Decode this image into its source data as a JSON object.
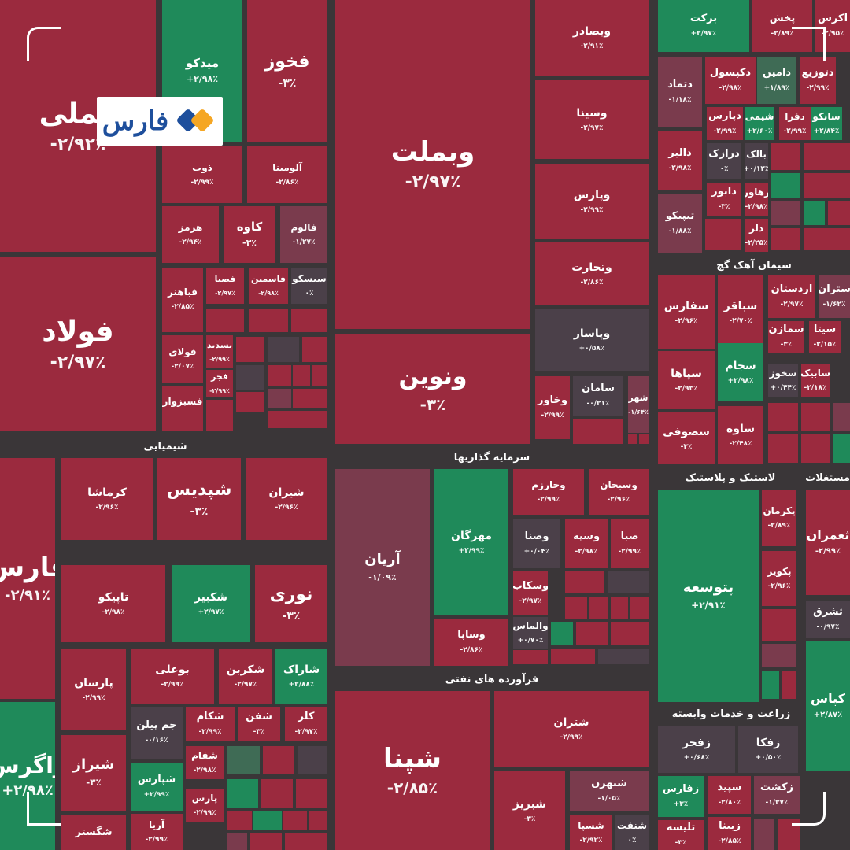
{
  "logo": {
    "text": "فارس",
    "colors": {
      "blue": "#1e4f9c",
      "orange": "#f5a623"
    }
  },
  "colors": {
    "red": "#9b2a3e",
    "green": "#1f8a5a",
    "neutral": "#4b4049",
    "muted_red": "#7a3b4d",
    "background": "#3a3638"
  },
  "chart_data": {
    "type": "treemap",
    "title": "",
    "sectors": [
      {
        "name": "شیمیایی"
      },
      {
        "name": "سرمایه گذاریها"
      },
      {
        "name": "فرآورده های نفتی"
      },
      {
        "name": "سیمان آهک گچ"
      },
      {
        "name": "لاستیک و پلاستیک"
      },
      {
        "name": "زراعت و خدمات وابسته"
      },
      {
        "name": "مستغلات"
      }
    ],
    "tiles": [
      {
        "symbol": "فملی",
        "change": "-۲/۹۲٪",
        "value": -2.92
      },
      {
        "symbol": "فولاد",
        "change": "-۲/۹۷٪",
        "value": -2.97
      },
      {
        "symbol": "میدکو",
        "change": "+۲/۹۸٪",
        "value": 2.98
      },
      {
        "symbol": "فخوز",
        "change": "-۳٪",
        "value": -3
      },
      {
        "symbol": "ذوب",
        "change": "-۲/۹۹٪",
        "value": -2.99
      },
      {
        "symbol": "آلومینا",
        "change": "-۲/۸۶٪",
        "value": -2.86
      },
      {
        "symbol": "هرمز",
        "change": "-۲/۹۴٪",
        "value": -2.94
      },
      {
        "symbol": "کاوه",
        "change": "-۳٪",
        "value": -3
      },
      {
        "symbol": "فالوم",
        "change": "-۱/۲۷٪",
        "value": -1.27
      },
      {
        "symbol": "فباهنر",
        "change": "-۲/۸۵٪",
        "value": -2.85
      },
      {
        "symbol": "فصبا",
        "change": "-۲/۹۷٪",
        "value": -2.97
      },
      {
        "symbol": "فاسمین",
        "change": "-۲/۹۸٪",
        "value": -2.98
      },
      {
        "symbol": "سیسکو",
        "change": "۰٪",
        "value": 0
      },
      {
        "symbol": "فولای",
        "change": "-۲/۰۷٪",
        "value": -2.07
      },
      {
        "symbol": "بسدید",
        "change": "-۲/۹۹٪",
        "value": -2.99
      },
      {
        "symbol": "فجر",
        "change": "-۲/۹۹٪",
        "value": -2.99
      },
      {
        "symbol": "فسبزوار",
        "change": "-۳٪",
        "value": -3
      },
      {
        "symbol": "وبملت",
        "change": "-۲/۹۷٪",
        "value": -2.97
      },
      {
        "symbol": "ونوین",
        "change": "-۳٪",
        "value": -3
      },
      {
        "symbol": "وبصادر",
        "change": "-۲/۹۱٪",
        "value": -2.91
      },
      {
        "symbol": "وسینا",
        "change": "-۲/۹۷٪",
        "value": -2.97
      },
      {
        "symbol": "وپارس",
        "change": "-۲/۹۹٪",
        "value": -2.99
      },
      {
        "symbol": "وتجارت",
        "change": "-۲/۸۶٪",
        "value": -2.86
      },
      {
        "symbol": "وپاسار",
        "change": "+۰/۵۸٪",
        "value": 0.58
      },
      {
        "symbol": "وخاور",
        "change": "-۲/۹۹٪",
        "value": -2.99
      },
      {
        "symbol": "سامان",
        "change": "-۰/۲۱٪",
        "value": -0.21
      },
      {
        "symbol": "شهر",
        "change": "-۱/۶۴٪",
        "value": -1.64
      },
      {
        "symbol": "برکت",
        "change": "+۲/۹۷٪",
        "value": 2.97
      },
      {
        "symbol": "پخش",
        "change": "-۲/۸۹٪",
        "value": -2.89
      },
      {
        "symbol": "اکرس",
        "change": "-۲/۹۵٪",
        "value": -2.95
      },
      {
        "symbol": "دتماد",
        "change": "-۱/۱۸٪",
        "value": -1.18
      },
      {
        "symbol": "دکپسول",
        "change": "-۲/۹۸٪",
        "value": -2.98
      },
      {
        "symbol": "دامین",
        "change": "+۱/۸۹٪",
        "value": 1.89
      },
      {
        "symbol": "دتوزیع",
        "change": "-۲/۹۹٪",
        "value": -2.99
      },
      {
        "symbol": "دپارس",
        "change": "-۲/۹۹٪",
        "value": -2.99
      },
      {
        "symbol": "شیمی",
        "change": "+۲/۶۰٪",
        "value": 2.6
      },
      {
        "symbol": "دفرا",
        "change": "-۲/۹۹٪",
        "value": -2.99
      },
      {
        "symbol": "سانکو",
        "change": "+۲/۸۴٪",
        "value": 2.84
      },
      {
        "symbol": "دالبر",
        "change": "-۲/۹۸٪",
        "value": -2.98
      },
      {
        "symbol": "درازک",
        "change": "۰٪",
        "value": 0
      },
      {
        "symbol": "بالک",
        "change": "+۰/۱۲٪",
        "value": 0.12
      },
      {
        "symbol": "دابور",
        "change": "-۳٪",
        "value": -3
      },
      {
        "symbol": "رهاور",
        "change": "-۲/۹۸٪",
        "value": -2.98
      },
      {
        "symbol": "تیپیکو",
        "change": "-۱/۸۸٪",
        "value": -1.88
      },
      {
        "symbol": "دلر",
        "change": "-۲/۲۵٪",
        "value": -2.25
      },
      {
        "symbol": "سفارس",
        "change": "-۲/۹۶٪",
        "value": -2.96
      },
      {
        "symbol": "سباقر",
        "change": "-۲/۷۰٪",
        "value": -2.7
      },
      {
        "symbol": "اردستان",
        "change": "-۲/۹۷٪",
        "value": -2.97
      },
      {
        "symbol": "ستران",
        "change": "-۱/۶۲٪",
        "value": -1.62
      },
      {
        "symbol": "سمازن",
        "change": "-۳٪",
        "value": -3
      },
      {
        "symbol": "سیتا",
        "change": "-۲/۱۵٪",
        "value": -2.15
      },
      {
        "symbol": "سپاها",
        "change": "-۲/۹۳٪",
        "value": -2.93
      },
      {
        "symbol": "سجام",
        "change": "+۲/۹۸٪",
        "value": 2.98
      },
      {
        "symbol": "سخوز",
        "change": "+۰/۴۴٪",
        "value": 0.44
      },
      {
        "symbol": "سابیک",
        "change": "-۲/۱۸٪",
        "value": -2.18
      },
      {
        "symbol": "سصوفی",
        "change": "-۳٪",
        "value": -3
      },
      {
        "symbol": "ساوه",
        "change": "-۲/۴۸٪",
        "value": -2.48
      },
      {
        "symbol": "فارس",
        "change": "-۲/۹۱٪",
        "value": -2.91
      },
      {
        "symbol": "کرماشا",
        "change": "-۲/۹۶٪",
        "value": -2.96
      },
      {
        "symbol": "شپدیس",
        "change": "-۳٪",
        "value": -3
      },
      {
        "symbol": "شیران",
        "change": "-۲/۹۶٪",
        "value": -2.96
      },
      {
        "symbol": "تاپیکو",
        "change": "-۲/۹۸٪",
        "value": -2.98
      },
      {
        "symbol": "شکبیر",
        "change": "+۲/۹۷٪",
        "value": 2.97
      },
      {
        "symbol": "نوری",
        "change": "-۳٪",
        "value": -3
      },
      {
        "symbol": "پارسان",
        "change": "-۲/۹۹٪",
        "value": -2.99
      },
      {
        "symbol": "بوعلی",
        "change": "-۲/۹۹٪",
        "value": -2.99
      },
      {
        "symbol": "شکربن",
        "change": "-۲/۹۷٪",
        "value": -2.97
      },
      {
        "symbol": "شاراک",
        "change": "+۲/۸۸٪",
        "value": 2.88
      },
      {
        "symbol": "جم پیلن",
        "change": "-۰/۱۶٪",
        "value": -0.16
      },
      {
        "symbol": "شکام",
        "change": "-۲/۹۹٪",
        "value": -2.99
      },
      {
        "symbol": "شفن",
        "change": "-۳٪",
        "value": -3
      },
      {
        "symbol": "کلر",
        "change": "-۲/۹۷٪",
        "value": -2.97
      },
      {
        "symbol": "شیراز",
        "change": "-۳٪",
        "value": -3
      },
      {
        "symbol": "شفام",
        "change": "-۲/۹۸٪",
        "value": -2.98
      },
      {
        "symbol": "شپارس",
        "change": "+۲/۹۹٪",
        "value": 2.99
      },
      {
        "symbol": "پارس",
        "change": "-۲/۹۹٪",
        "value": -2.99
      },
      {
        "symbol": "آریا",
        "change": "-۲/۹۹٪",
        "value": -2.99
      },
      {
        "symbol": "شگستر",
        "change": "",
        "value": null
      },
      {
        "symbol": "زاگرس",
        "change": "+۲/۹۸٪",
        "value": 2.98
      },
      {
        "symbol": "آریان",
        "change": "-۱/۰۹٪",
        "value": -1.09
      },
      {
        "symbol": "مهرگان",
        "change": "+۲/۹۹٪",
        "value": 2.99
      },
      {
        "symbol": "وخارزم",
        "change": "-۲/۹۹٪",
        "value": -2.99
      },
      {
        "symbol": "وسبحان",
        "change": "-۲/۹۶٪",
        "value": -2.96
      },
      {
        "symbol": "وصنا",
        "change": "+۰/۰۴٪",
        "value": 0.04
      },
      {
        "symbol": "وسپه",
        "change": "-۲/۹۸٪",
        "value": -2.98
      },
      {
        "symbol": "صبا",
        "change": "-۲/۹۹٪",
        "value": -2.99
      },
      {
        "symbol": "وسکاب",
        "change": "-۲/۹۷٪",
        "value": -2.97
      },
      {
        "symbol": "والماس",
        "change": "+۰/۷۰٪",
        "value": 0.7
      },
      {
        "symbol": "وساپا",
        "change": "-۲/۸۶٪",
        "value": -2.86
      },
      {
        "symbol": "شپنا",
        "change": "-۲/۸۵٪",
        "value": -2.85
      },
      {
        "symbol": "شتران",
        "change": "-۲/۹۹٪",
        "value": -2.99
      },
      {
        "symbol": "شبریز",
        "change": "-۳٪",
        "value": -3
      },
      {
        "symbol": "شبهرن",
        "change": "-۱/۰۵٪",
        "value": -1.05
      },
      {
        "symbol": "شسپا",
        "change": "-۲/۹۲٪",
        "value": -2.92
      },
      {
        "symbol": "شنفت",
        "change": "۰٪",
        "value": 0
      },
      {
        "symbol": "پتوسعه",
        "change": "+۲/۹۱٪",
        "value": 2.91
      },
      {
        "symbol": "پکرمان",
        "change": "-۲/۸۹٪",
        "value": -2.89
      },
      {
        "symbol": "پکویر",
        "change": "-۲/۹۶٪",
        "value": -2.96
      },
      {
        "symbol": "زفجر",
        "change": "+۰/۶۸٪",
        "value": 0.68
      },
      {
        "symbol": "زفکا",
        "change": "+۰/۵۰٪",
        "value": 0.5
      },
      {
        "symbol": "زفارس",
        "change": "+۳٪",
        "value": 3
      },
      {
        "symbol": "سپید",
        "change": "-۲/۸۰٪",
        "value": -2.8
      },
      {
        "symbol": "زکشت",
        "change": "-۱/۳۷٪",
        "value": -1.37
      },
      {
        "symbol": "تلیسه",
        "change": "-۳٪",
        "value": -3
      },
      {
        "symbol": "زبینا",
        "change": "-۲/۸۵٪",
        "value": -2.85
      },
      {
        "symbol": "ثعمران",
        "change": "-۲/۹۹٪",
        "value": -2.99
      },
      {
        "symbol": "ثشرق",
        "change": "-۰/۹۷٪",
        "value": -0.97
      },
      {
        "symbol": "کپاس",
        "change": "+۲/۸۷٪",
        "value": 2.87
      }
    ]
  }
}
